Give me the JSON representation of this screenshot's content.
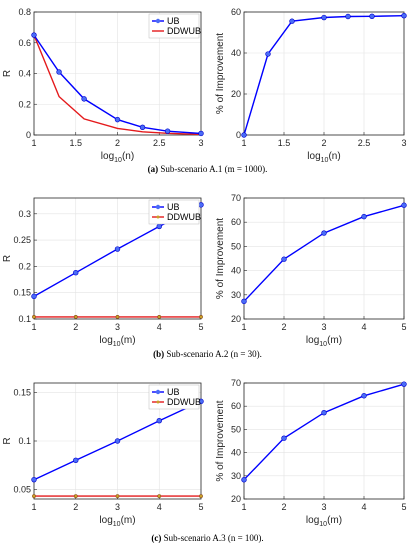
{
  "colors": {
    "ub": "#0000ff",
    "ddwub": "#e41a1c",
    "improvement": "#0000ff",
    "grid": "#e3e3e3",
    "axis": "#262626"
  },
  "captions": [
    {
      "label": "(a)",
      "text": "Sub-scenario A.1 (m = 1000)."
    },
    {
      "label": "(b)",
      "text": "Sub-scenario A.2 (n = 30)."
    },
    {
      "label": "(c)",
      "text": "Sub-scenario A.3 (n = 100)."
    }
  ],
  "chart_data": [
    {
      "type": "line",
      "panel": "a-left",
      "xlabel": "log10(n)",
      "ylabel": "R",
      "xlim": [
        1,
        3
      ],
      "ylim": [
        0,
        0.8
      ],
      "xticks": [
        1,
        1.5,
        2,
        2.5,
        3
      ],
      "yticks": [
        0,
        0.2,
        0.4,
        0.6,
        0.8
      ],
      "grid": true,
      "legend": "top-right",
      "series": [
        {
          "name": "UB",
          "color": "#0000ff",
          "marker": "circle",
          "x": [
            1,
            1.3,
            1.6,
            2,
            2.3,
            2.6,
            3
          ],
          "y": [
            0.65,
            0.41,
            0.235,
            0.1,
            0.05,
            0.025,
            0.01
          ]
        },
        {
          "name": "DDWUB",
          "color": "#e41a1c",
          "marker": "none",
          "x": [
            1,
            1.3,
            1.6,
            2,
            2.3,
            2.6,
            3
          ],
          "y": [
            0.65,
            0.25,
            0.105,
            0.043,
            0.021,
            0.011,
            0.004
          ]
        }
      ]
    },
    {
      "type": "line",
      "panel": "a-right",
      "xlabel": "log10(n)",
      "ylabel": "% of Improvement",
      "xlim": [
        1,
        3
      ],
      "ylim": [
        0,
        60
      ],
      "xticks": [
        1,
        1.5,
        2,
        2.5,
        3
      ],
      "yticks": [
        0,
        20,
        40,
        60
      ],
      "grid": true,
      "legend": "none",
      "series": [
        {
          "name": "",
          "color": "#0000ff",
          "marker": "circle",
          "x": [
            1,
            1.3,
            1.6,
            2,
            2.3,
            2.6,
            3
          ],
          "y": [
            0,
            39.5,
            55.5,
            57.3,
            57.8,
            57.9,
            58.2
          ]
        }
      ]
    },
    {
      "type": "line",
      "panel": "b-left",
      "xlabel": "log10(m)",
      "ylabel": "R",
      "xlim": [
        1,
        5
      ],
      "ylim": [
        0.1,
        0.33
      ],
      "xticks": [
        1,
        2,
        3,
        4,
        5
      ],
      "yticks": [
        0.1,
        0.15,
        0.2,
        0.25,
        0.3
      ],
      "grid": true,
      "legend": "top-right",
      "series": [
        {
          "name": "UB",
          "color": "#0000ff",
          "marker": "circle",
          "x": [
            1,
            2,
            3,
            4,
            5
          ],
          "y": [
            0.143,
            0.188,
            0.233,
            0.276,
            0.317
          ]
        },
        {
          "name": "DDWUB",
          "color": "#e41a1c",
          "marker": "circle",
          "x": [
            1,
            2,
            3,
            4,
            5
          ],
          "y": [
            0.104,
            0.104,
            0.104,
            0.104,
            0.104
          ]
        }
      ]
    },
    {
      "type": "line",
      "panel": "b-right",
      "xlabel": "log10(m)",
      "ylabel": "% of Improvement",
      "xlim": [
        1,
        5
      ],
      "ylim": [
        20,
        70
      ],
      "xticks": [
        1,
        2,
        3,
        4,
        5
      ],
      "yticks": [
        20,
        30,
        40,
        50,
        60,
        70
      ],
      "grid": true,
      "legend": "none",
      "series": [
        {
          "name": "",
          "color": "#0000ff",
          "marker": "circle",
          "x": [
            1,
            2,
            3,
            4,
            5
          ],
          "y": [
            27.3,
            44.7,
            55.5,
            62.3,
            67
          ]
        }
      ]
    },
    {
      "type": "line",
      "panel": "c-left",
      "xlabel": "log10(m)",
      "ylabel": "R",
      "xlim": [
        1,
        5
      ],
      "ylim": [
        0.04,
        0.16
      ],
      "xticks": [
        1,
        2,
        3,
        4,
        5
      ],
      "yticks": [
        0.05,
        0.1,
        0.15
      ],
      "grid": true,
      "legend": "top-right",
      "series": [
        {
          "name": "UB",
          "color": "#0000ff",
          "marker": "circle",
          "x": [
            1,
            2,
            3,
            4,
            5
          ],
          "y": [
            0.06,
            0.08,
            0.1,
            0.121,
            0.141
          ]
        },
        {
          "name": "DDWUB",
          "color": "#e41a1c",
          "marker": "circle",
          "x": [
            1,
            2,
            3,
            4,
            5
          ],
          "y": [
            0.043,
            0.043,
            0.043,
            0.043,
            0.043
          ]
        }
      ]
    },
    {
      "type": "line",
      "panel": "c-right",
      "xlabel": "log10(m)",
      "ylabel": "% of Improvement",
      "xlim": [
        1,
        5
      ],
      "ylim": [
        20,
        70
      ],
      "xticks": [
        1,
        2,
        3,
        4,
        5
      ],
      "yticks": [
        20,
        30,
        40,
        50,
        60,
        70
      ],
      "grid": true,
      "legend": "none",
      "series": [
        {
          "name": "",
          "color": "#0000ff",
          "marker": "circle",
          "x": [
            1,
            2,
            3,
            4,
            5
          ],
          "y": [
            28.3,
            46.2,
            57.2,
            64.5,
            69.5
          ]
        }
      ]
    }
  ]
}
